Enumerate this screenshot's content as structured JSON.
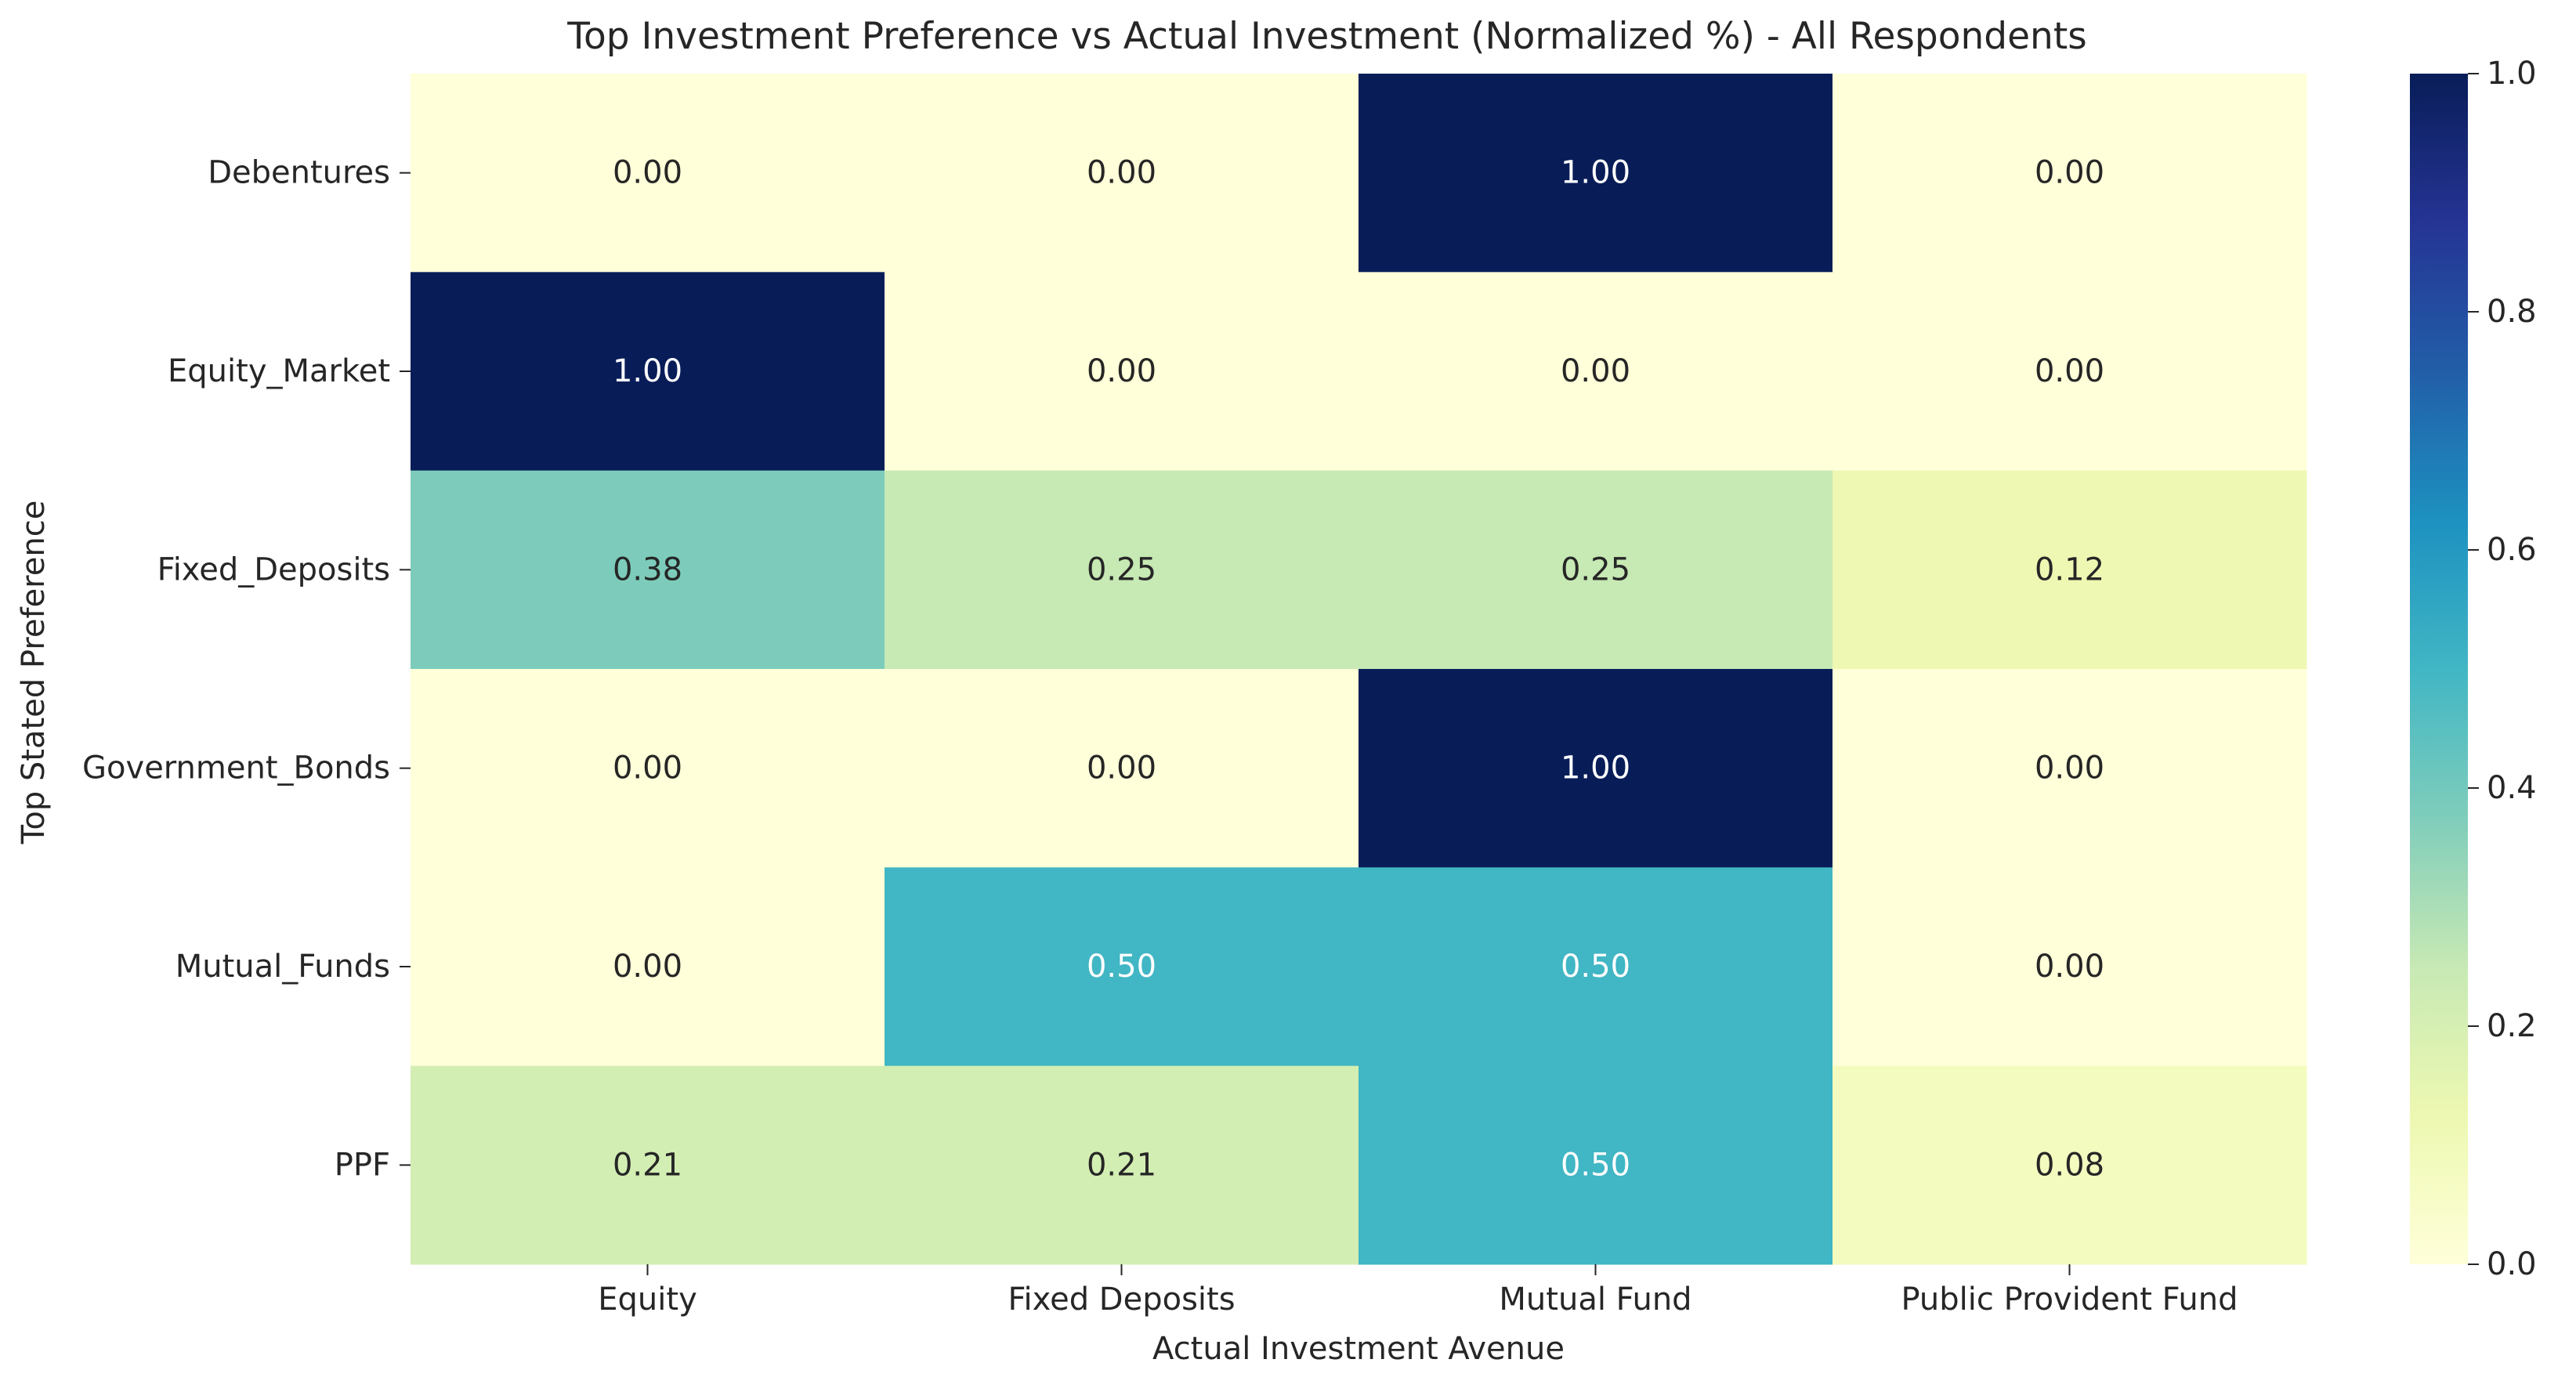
{
  "chart_data": {
    "type": "heatmap",
    "title": "Top Investment Preference vs Actual Investment (Normalized %) - All Respondents",
    "xlabel": "Actual Investment Avenue",
    "ylabel": "Top Stated Preference",
    "x_categories": [
      "Equity",
      "Fixed Deposits",
      "Mutual Fund",
      "Public Provident Fund"
    ],
    "y_categories": [
      "Debentures",
      "Equity_Market",
      "Fixed_Deposits",
      "Government_Bonds",
      "Mutual_Funds",
      "PPF"
    ],
    "values": [
      [
        0.0,
        0.0,
        1.0,
        0.0
      ],
      [
        1.0,
        0.0,
        0.0,
        0.0
      ],
      [
        0.38,
        0.25,
        0.25,
        0.12
      ],
      [
        0.0,
        0.0,
        1.0,
        0.0
      ],
      [
        0.0,
        0.5,
        0.5,
        0.0
      ],
      [
        0.21,
        0.21,
        0.5,
        0.08
      ]
    ],
    "value_format": "0.00",
    "colormap": "YlGnBu",
    "colorbar": {
      "range": [
        0.0,
        1.0
      ],
      "ticks": [
        "0.0",
        "0.2",
        "0.4",
        "0.6",
        "0.8",
        "1.0"
      ]
    },
    "grid": false,
    "legend": "colorbar-right"
  }
}
